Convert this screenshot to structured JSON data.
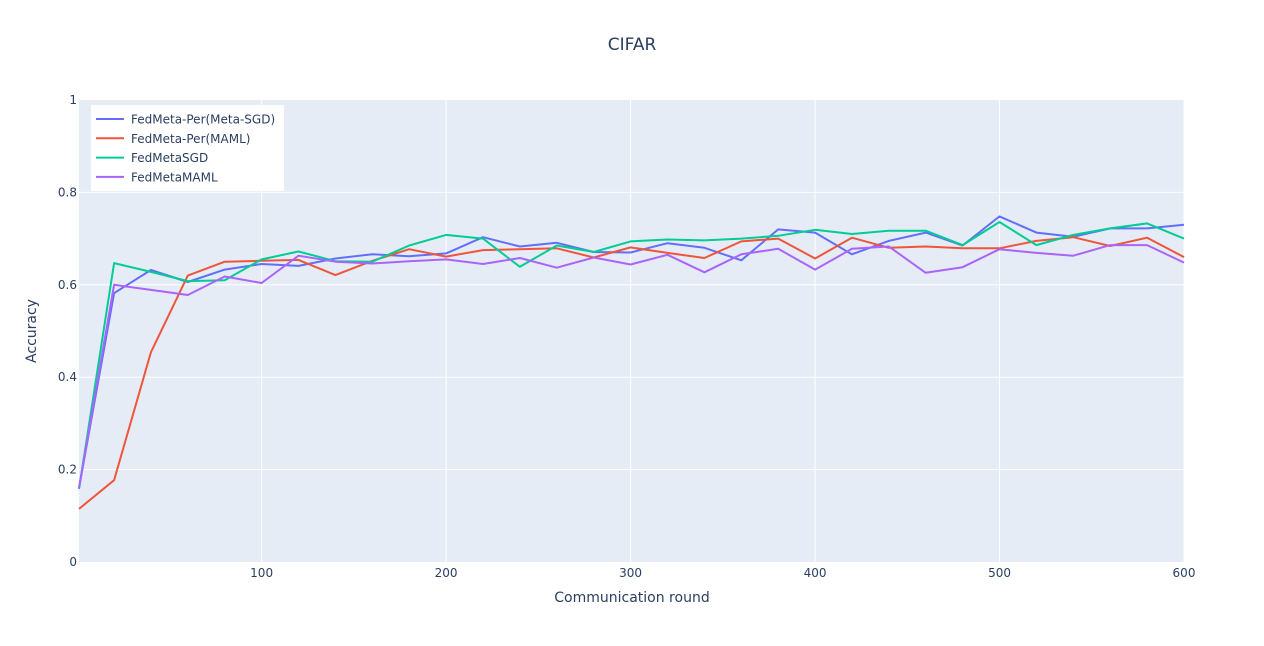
{
  "chart_data": {
    "type": "line",
    "title": "CIFAR",
    "xlabel": "Communication round",
    "ylabel": "Accuracy",
    "xlim": [
      1,
      600
    ],
    "ylim": [
      0,
      1
    ],
    "x_ticks": [
      100,
      200,
      300,
      400,
      500,
      600
    ],
    "y_ticks": [
      0,
      0.2,
      0.4,
      0.6,
      0.8,
      1
    ],
    "y_tick_labels": [
      "0",
      "0.2",
      "0.4",
      "0.6",
      "0.8",
      "1"
    ],
    "grid": true,
    "legend_position": "top-left",
    "x": [
      1,
      20,
      40,
      60,
      80,
      100,
      120,
      140,
      160,
      180,
      200,
      220,
      240,
      260,
      280,
      300,
      320,
      340,
      360,
      380,
      400,
      420,
      440,
      460,
      480,
      500,
      520,
      540,
      560,
      580,
      600
    ],
    "series": [
      {
        "name": "FedMeta-Per(Meta-SGD)",
        "color": "#636efa",
        "values": [
          0.16,
          0.582,
          0.632,
          0.606,
          0.633,
          0.645,
          0.641,
          0.657,
          0.666,
          0.662,
          0.668,
          0.703,
          0.683,
          0.691,
          0.671,
          0.67,
          0.69,
          0.68,
          0.653,
          0.72,
          0.713,
          0.666,
          0.695,
          0.713,
          0.685,
          0.748,
          0.713,
          0.704,
          0.722,
          0.722,
          0.73
        ]
      },
      {
        "name": "FedMeta-Per(MAML)",
        "color": "#ef553b",
        "values": [
          0.115,
          0.177,
          0.454,
          0.62,
          0.65,
          0.652,
          0.654,
          0.621,
          0.652,
          0.677,
          0.661,
          0.675,
          0.677,
          0.679,
          0.659,
          0.681,
          0.669,
          0.658,
          0.694,
          0.7,
          0.657,
          0.702,
          0.68,
          0.683,
          0.679,
          0.679,
          0.695,
          0.703,
          0.684,
          0.702,
          0.66
        ]
      },
      {
        "name": "FedMetaSGD",
        "color": "#00cc96",
        "values": [
          0.158,
          0.647,
          0.628,
          0.608,
          0.61,
          0.655,
          0.672,
          0.651,
          0.65,
          0.685,
          0.708,
          0.7,
          0.639,
          0.685,
          0.671,
          0.694,
          0.698,
          0.696,
          0.7,
          0.706,
          0.719,
          0.71,
          0.717,
          0.717,
          0.686,
          0.736,
          0.686,
          0.708,
          0.722,
          0.733,
          0.7
        ]
      },
      {
        "name": "FedMetaMAML",
        "color": "#ab63fa",
        "values": [
          0.16,
          0.6,
          0.589,
          0.578,
          0.618,
          0.604,
          0.663,
          0.65,
          0.646,
          0.651,
          0.655,
          0.645,
          0.658,
          0.637,
          0.659,
          0.644,
          0.665,
          0.627,
          0.666,
          0.678,
          0.633,
          0.678,
          0.683,
          0.626,
          0.638,
          0.677,
          0.669,
          0.663,
          0.686,
          0.686,
          0.648
        ]
      }
    ]
  }
}
